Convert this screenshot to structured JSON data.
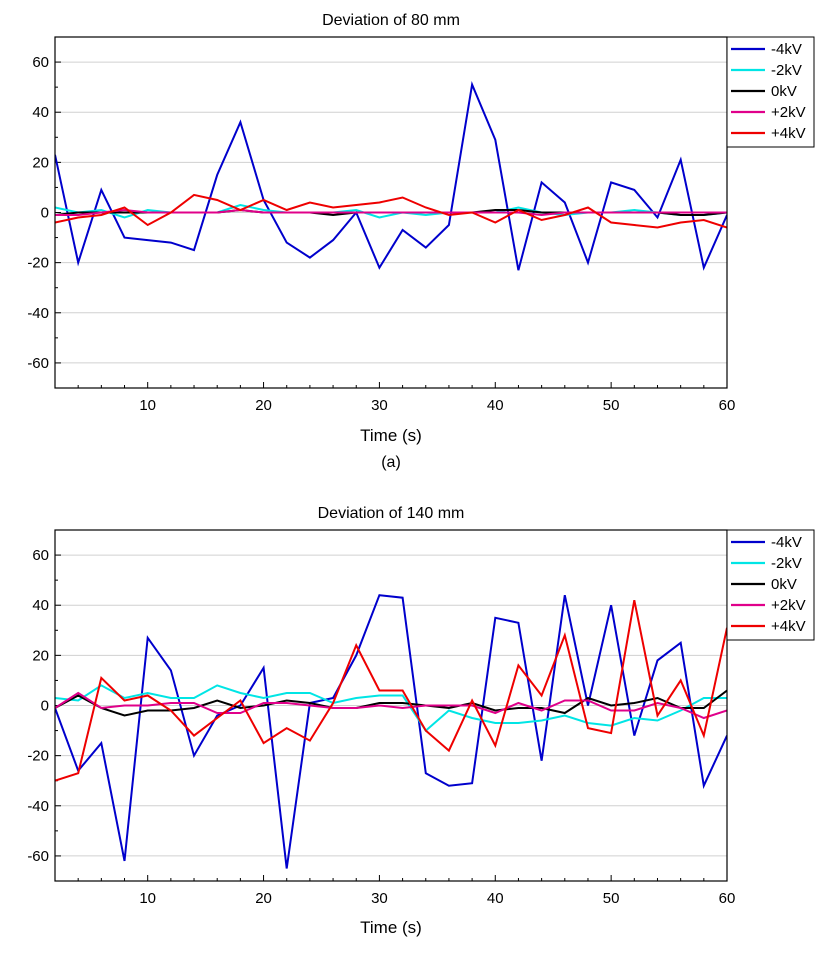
{
  "chart_data": [
    {
      "type": "line",
      "title": "Deviation of 80 mm",
      "xlabel": "Time (s)",
      "ylabel": "",
      "caption": "(a)",
      "xlim": [
        2,
        60
      ],
      "ylim": [
        -70,
        70
      ],
      "xticks": [
        10,
        20,
        30,
        40,
        50,
        60
      ],
      "yticks": [
        -60,
        -40,
        -20,
        0,
        20,
        40,
        60
      ],
      "grid": true,
      "legend_position": "top-right",
      "x": [
        2,
        4,
        6,
        8,
        10,
        12,
        14,
        16,
        18,
        20,
        22,
        24,
        26,
        28,
        30,
        32,
        34,
        36,
        38,
        40,
        42,
        44,
        46,
        48,
        50,
        52,
        54,
        56,
        58,
        60
      ],
      "series": [
        {
          "name": "-4kV",
          "color": "#0000cc",
          "values": [
            23,
            -20,
            9,
            -10,
            -11,
            -12,
            -15,
            15,
            36,
            5,
            -12,
            -18,
            -11,
            0,
            -22,
            -7,
            -14,
            -5,
            51,
            29,
            -23,
            12,
            4,
            -20,
            12,
            9,
            -2,
            21,
            -22,
            -1
          ]
        },
        {
          "name": "-2kV",
          "color": "#00e5e5",
          "values": [
            2,
            0,
            1,
            -2,
            1,
            0,
            0,
            0,
            3,
            1,
            0,
            0,
            0,
            1,
            -2,
            0,
            -1,
            0,
            0,
            0,
            2,
            0,
            -1,
            0,
            0,
            1,
            0,
            -1,
            -1,
            0
          ]
        },
        {
          "name": "0kV",
          "color": "#000000",
          "values": [
            -1,
            0,
            0,
            0,
            0,
            0,
            0,
            0,
            1,
            0,
            0,
            0,
            -1,
            0,
            0,
            0,
            0,
            0,
            0,
            1,
            1,
            0,
            0,
            0,
            0,
            0,
            0,
            -1,
            -1,
            0
          ]
        },
        {
          "name": "+2kV",
          "color": "#e0008a",
          "values": [
            -1,
            -1,
            0,
            1,
            0,
            0,
            0,
            0,
            1,
            0,
            0,
            0,
            0,
            0,
            0,
            0,
            0,
            0,
            0,
            0,
            0,
            -1,
            0,
            0,
            0,
            0,
            0,
            0,
            0,
            0
          ]
        },
        {
          "name": "+4kV",
          "color": "#ee0000",
          "values": [
            -4,
            -2,
            -1,
            2,
            -5,
            0,
            7,
            5,
            1,
            5,
            1,
            4,
            2,
            3,
            4,
            6,
            2,
            -1,
            0,
            -4,
            1,
            -3,
            -1,
            2,
            -4,
            -5,
            -6,
            -4,
            -3,
            -6
          ]
        }
      ]
    },
    {
      "type": "line",
      "title": "Deviation of 140 mm",
      "xlabel": "Time (s)",
      "ylabel": "",
      "xlim": [
        2,
        60
      ],
      "ylim": [
        -70,
        70
      ],
      "xticks": [
        10,
        20,
        30,
        40,
        50,
        60
      ],
      "yticks": [
        -60,
        -40,
        -20,
        0,
        20,
        40,
        60
      ],
      "grid": true,
      "legend_position": "top-right",
      "x": [
        2,
        4,
        6,
        8,
        10,
        12,
        14,
        16,
        18,
        20,
        22,
        24,
        26,
        28,
        30,
        32,
        34,
        36,
        38,
        40,
        42,
        44,
        46,
        48,
        50,
        52,
        54,
        56,
        58,
        60
      ],
      "series": [
        {
          "name": "-4kV",
          "color": "#0000cc",
          "values": [
            -1,
            -26,
            -15,
            -62,
            27,
            14,
            -20,
            -4,
            0,
            15,
            -65,
            1,
            3,
            20,
            44,
            43,
            -27,
            -32,
            -31,
            35,
            33,
            -22,
            44,
            0,
            40,
            -12,
            18,
            25,
            -32,
            -12
          ]
        },
        {
          "name": "-2kV",
          "color": "#00e5e5",
          "values": [
            3,
            2,
            8,
            3,
            5,
            3,
            3,
            8,
            5,
            3,
            5,
            5,
            1,
            3,
            4,
            4,
            -10,
            -2,
            -5,
            -7,
            -7,
            -6,
            -4,
            -7,
            -8,
            -5,
            -6,
            -2,
            3,
            3
          ]
        },
        {
          "name": "0kV",
          "color": "#000000",
          "values": [
            -1,
            4,
            -1,
            -4,
            -2,
            -2,
            -1,
            2,
            -1,
            0,
            2,
            1,
            -1,
            -1,
            1,
            1,
            0,
            -1,
            1,
            -2,
            -1,
            -1,
            -3,
            3,
            0,
            1,
            3,
            -1,
            -1,
            6
          ]
        },
        {
          "name": "+2kV",
          "color": "#e0008a",
          "values": [
            -1,
            5,
            -1,
            0,
            0,
            1,
            1,
            -3,
            -3,
            1,
            1,
            0,
            -1,
            -1,
            0,
            -1,
            0,
            0,
            0,
            -3,
            1,
            -2,
            2,
            2,
            -2,
            -2,
            1,
            -1,
            -5,
            -2
          ]
        },
        {
          "name": "+4kV",
          "color": "#ee0000",
          "values": [
            -30,
            -27,
            11,
            2,
            4,
            -2,
            -12,
            -5,
            2,
            -15,
            -9,
            -14,
            1,
            24,
            6,
            6,
            -10,
            -18,
            2,
            -16,
            16,
            4,
            28,
            -9,
            -11,
            42,
            -4,
            10,
            -12,
            31
          ]
        }
      ]
    }
  ]
}
